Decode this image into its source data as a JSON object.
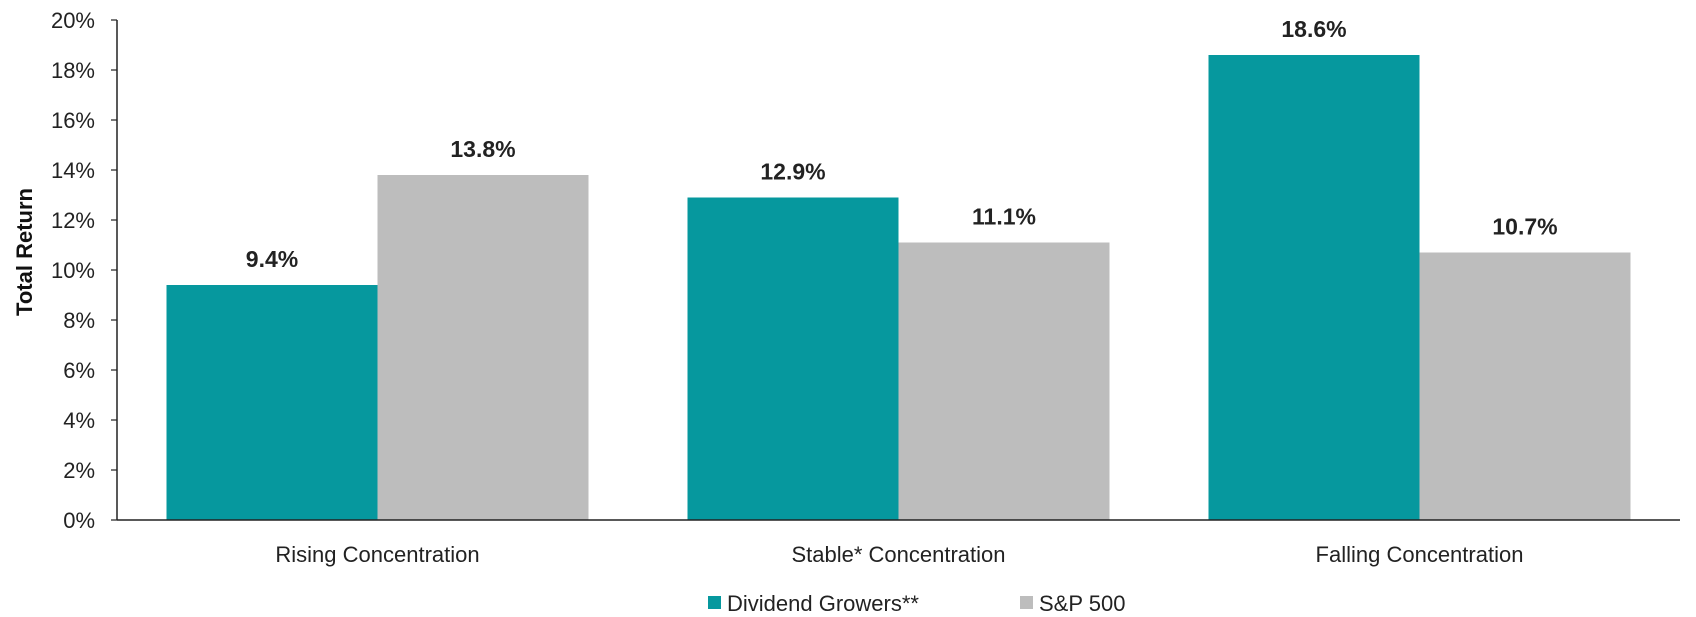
{
  "chart_data": {
    "type": "bar",
    "categories": [
      "Rising Concentration",
      "Stable* Concentration",
      "Falling Concentration"
    ],
    "series": [
      {
        "name": "Dividend Growers**",
        "values": [
          9.4,
          12.9,
          18.6
        ],
        "color": "#06989E"
      },
      {
        "name": "S&P 500",
        "values": [
          13.8,
          11.1,
          10.7
        ],
        "color": "#BDBDBD"
      }
    ],
    "data_labels": [
      [
        "9.4%",
        "12.9%",
        "18.6%"
      ],
      [
        "13.8%",
        "11.1%",
        "10.7%"
      ]
    ],
    "ylabel": "Total Return",
    "xlabel": "",
    "ylim": [
      0,
      20
    ],
    "y_ticks": [
      0,
      2,
      4,
      6,
      8,
      10,
      12,
      14,
      16,
      18,
      20
    ],
    "y_tick_labels": [
      "0%",
      "2%",
      "4%",
      "6%",
      "8%",
      "10%",
      "12%",
      "14%",
      "16%",
      "18%",
      "20%"
    ],
    "grid": false,
    "legend_position": "bottom-center"
  }
}
